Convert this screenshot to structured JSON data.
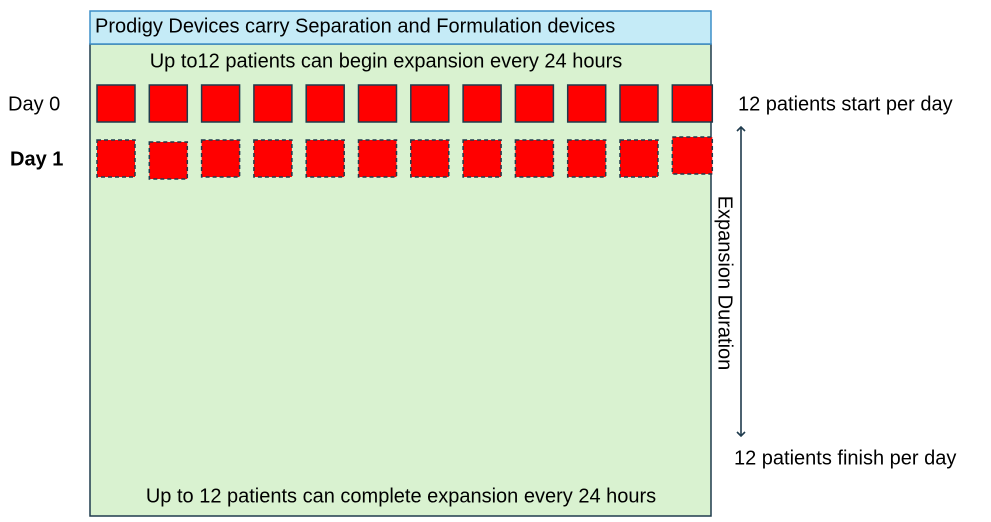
{
  "header": {
    "title": "Prodigy Devices carry Separation and Formulation devices"
  },
  "panel": {
    "top_text": "Up to12 patients can begin expansion every 24 hours",
    "bottom_text": "Up to 12 patients can complete expansion every 24 hours"
  },
  "rows": [
    {
      "label": "Day 0"
    },
    {
      "label": "Day 1"
    }
  ],
  "annotations": {
    "start": "12 patients start per day",
    "duration": "Expansion Duration",
    "finish": "12 patients finish per day"
  }
}
